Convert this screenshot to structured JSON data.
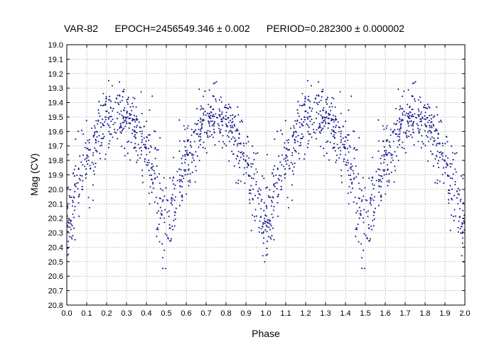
{
  "chart_data": {
    "type": "scatter",
    "title": "VAR-82      EPOCH=2456549.346 ± 0.002      PERIOD=0.282300 ± 0.000002",
    "xlabel": "Phase",
    "ylabel": "Mag (CV)",
    "xlim": [
      0.0,
      2.0
    ],
    "ylim": [
      19.0,
      20.8
    ],
    "y_inverted": true,
    "x_ticks": [
      "0.0",
      "0.1",
      "0.2",
      "0.3",
      "0.4",
      "0.5",
      "0.6",
      "0.7",
      "0.8",
      "0.9",
      "1.0",
      "1.1",
      "1.2",
      "1.3",
      "1.4",
      "1.5",
      "1.6",
      "1.7",
      "1.8",
      "1.9",
      "2.0"
    ],
    "y_ticks": [
      "19.0",
      "19.1",
      "19.2",
      "19.3",
      "19.4",
      "19.5",
      "19.6",
      "19.7",
      "19.8",
      "19.9",
      "20.0",
      "20.1",
      "20.2",
      "20.3",
      "20.4",
      "20.5",
      "20.6",
      "20.7",
      "20.8"
    ],
    "grid": true,
    "marker_color": "#1a1a8c",
    "series": [
      {
        "phase_curve": {
          "knots_phase": [
            0.0,
            0.1,
            0.2,
            0.3,
            0.4,
            0.5,
            0.6,
            0.7,
            0.8,
            0.9,
            1.0
          ],
          "knots_mag": [
            20.2,
            19.8,
            19.5,
            19.48,
            19.75,
            20.2,
            19.8,
            19.5,
            19.55,
            19.8,
            20.2
          ],
          "scatter_sigma": 0.13,
          "points_per_cycle": 900,
          "folded_cycles": 2
        }
      }
    ]
  }
}
